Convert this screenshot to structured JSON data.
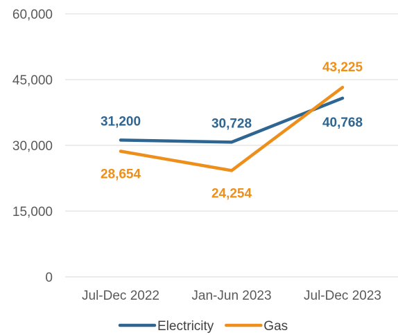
{
  "chart_data": {
    "type": "line",
    "categories": [
      "Jul-Dec 2022",
      "Jan-Jun 2023",
      "Jul-Dec 2023"
    ],
    "series": [
      {
        "name": "Electricity",
        "values": [
          31200,
          30728,
          40768
        ],
        "labels": [
          "31,200",
          "30,728",
          "40,768"
        ],
        "color": "#2E6591"
      },
      {
        "name": "Gas",
        "values": [
          28654,
          24254,
          43225
        ],
        "labels": [
          "28,654",
          "24,254",
          "43,225"
        ],
        "color": "#ED8F1A"
      }
    ],
    "ylim": [
      0,
      60000
    ],
    "yticks": [
      0,
      15000,
      30000,
      45000,
      60000
    ],
    "ytick_labels": [
      "0",
      "15,000",
      "30,000",
      "45,000",
      "60,000"
    ],
    "grid": true,
    "legend": "bottom",
    "title": "",
    "xlabel": "",
    "ylabel": ""
  }
}
